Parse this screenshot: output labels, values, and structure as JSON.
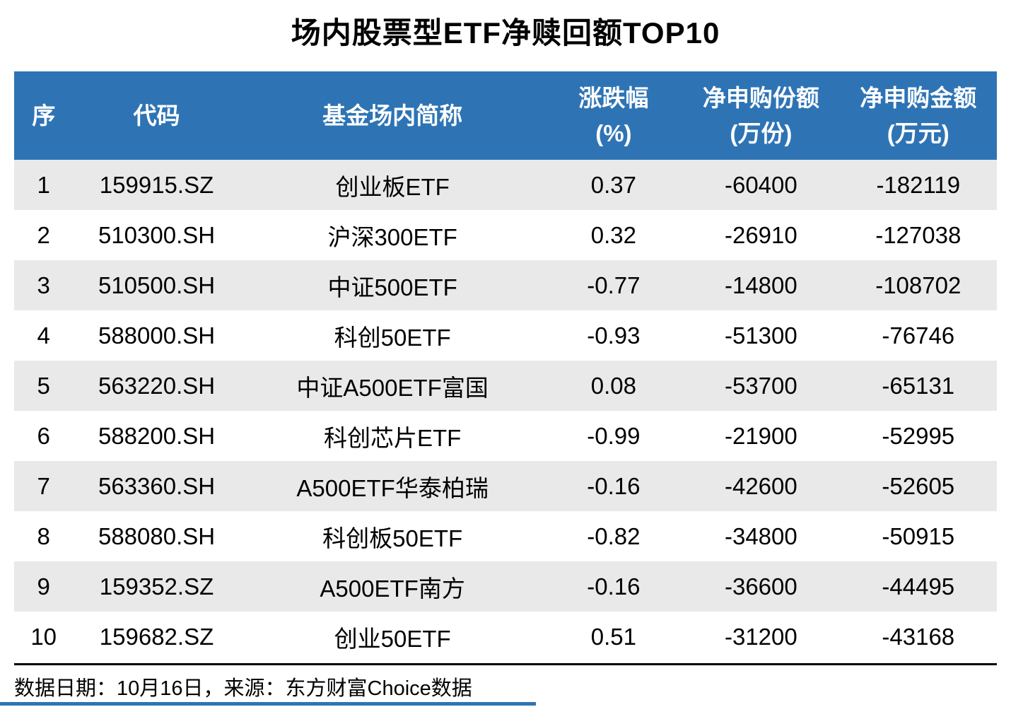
{
  "title": "场内股票型ETF净赎回额TOP10",
  "colors": {
    "header_bg": "#2E74B5",
    "header_text": "#FFFFFF",
    "row_alt_bg": "#E9E9E9",
    "row_bg": "#FFFFFF",
    "body_text": "#000000",
    "footer_rule": "#000000",
    "bottom_accent": "#2E74B5"
  },
  "table": {
    "headers": [
      "序",
      "代码",
      "基金场内简称",
      "涨跌幅\n(%)",
      "净申购份额\n(万份)",
      "净申购金额\n(万元)"
    ],
    "rows": [
      [
        "1",
        "159915.SZ",
        "创业板ETF",
        "0.37",
        "-60400",
        "-182119"
      ],
      [
        "2",
        "510300.SH",
        "沪深300ETF",
        "0.32",
        "-26910",
        "-127038"
      ],
      [
        "3",
        "510500.SH",
        "中证500ETF",
        "-0.77",
        "-14800",
        "-108702"
      ],
      [
        "4",
        "588000.SH",
        "科创50ETF",
        "-0.93",
        "-51300",
        "-76746"
      ],
      [
        "5",
        "563220.SH",
        "中证A500ETF富国",
        "0.08",
        "-53700",
        "-65131"
      ],
      [
        "6",
        "588200.SH",
        "科创芯片ETF",
        "-0.99",
        "-21900",
        "-52995"
      ],
      [
        "7",
        "563360.SH",
        "A500ETF华泰柏瑞",
        "-0.16",
        "-42600",
        "-52605"
      ],
      [
        "8",
        "588080.SH",
        "科创板50ETF",
        "-0.82",
        "-34800",
        "-50915"
      ],
      [
        "9",
        "159352.SZ",
        "A500ETF南方",
        "-0.16",
        "-36600",
        "-44495"
      ],
      [
        "10",
        "159682.SZ",
        "创业50ETF",
        "0.51",
        "-31200",
        "-43168"
      ]
    ]
  },
  "footer": {
    "text": "数据日期：10月16日，来源：东方财富Choice数据"
  },
  "chart_data": {
    "type": "table",
    "title": "场内股票型ETF净赎回额TOP10",
    "columns": [
      "序",
      "代码",
      "基金场内简称",
      "涨跌幅(%)",
      "净申购份额(万份)",
      "净申购金额(万元)"
    ],
    "rows": [
      {
        "rank": 1,
        "code": "159915.SZ",
        "name": "创业板ETF",
        "change_pct": 0.37,
        "net_subscription_shares_wan": -60400,
        "net_subscription_amount_wan": -182119
      },
      {
        "rank": 2,
        "code": "510300.SH",
        "name": "沪深300ETF",
        "change_pct": 0.32,
        "net_subscription_shares_wan": -26910,
        "net_subscription_amount_wan": -127038
      },
      {
        "rank": 3,
        "code": "510500.SH",
        "name": "中证500ETF",
        "change_pct": -0.77,
        "net_subscription_shares_wan": -14800,
        "net_subscription_amount_wan": -108702
      },
      {
        "rank": 4,
        "code": "588000.SH",
        "name": "科创50ETF",
        "change_pct": -0.93,
        "net_subscription_shares_wan": -51300,
        "net_subscription_amount_wan": -76746
      },
      {
        "rank": 5,
        "code": "563220.SH",
        "name": "中证A500ETF富国",
        "change_pct": 0.08,
        "net_subscription_shares_wan": -53700,
        "net_subscription_amount_wan": -65131
      },
      {
        "rank": 6,
        "code": "588200.SH",
        "name": "科创芯片ETF",
        "change_pct": -0.99,
        "net_subscription_shares_wan": -21900,
        "net_subscription_amount_wan": -52995
      },
      {
        "rank": 7,
        "code": "563360.SH",
        "name": "A500ETF华泰柏瑞",
        "change_pct": -0.16,
        "net_subscription_shares_wan": -42600,
        "net_subscription_amount_wan": -52605
      },
      {
        "rank": 8,
        "code": "588080.SH",
        "name": "科创板50ETF",
        "change_pct": -0.82,
        "net_subscription_shares_wan": -34800,
        "net_subscription_amount_wan": -50915
      },
      {
        "rank": 9,
        "code": "159352.SZ",
        "name": "A500ETF南方",
        "change_pct": -0.16,
        "net_subscription_shares_wan": -36600,
        "net_subscription_amount_wan": -44495
      },
      {
        "rank": 10,
        "code": "159682.SZ",
        "name": "创业50ETF",
        "change_pct": 0.51,
        "net_subscription_shares_wan": -31200,
        "net_subscription_amount_wan": -43168
      }
    ],
    "source_note": "数据日期：10月16日，来源：东方财富Choice数据"
  }
}
